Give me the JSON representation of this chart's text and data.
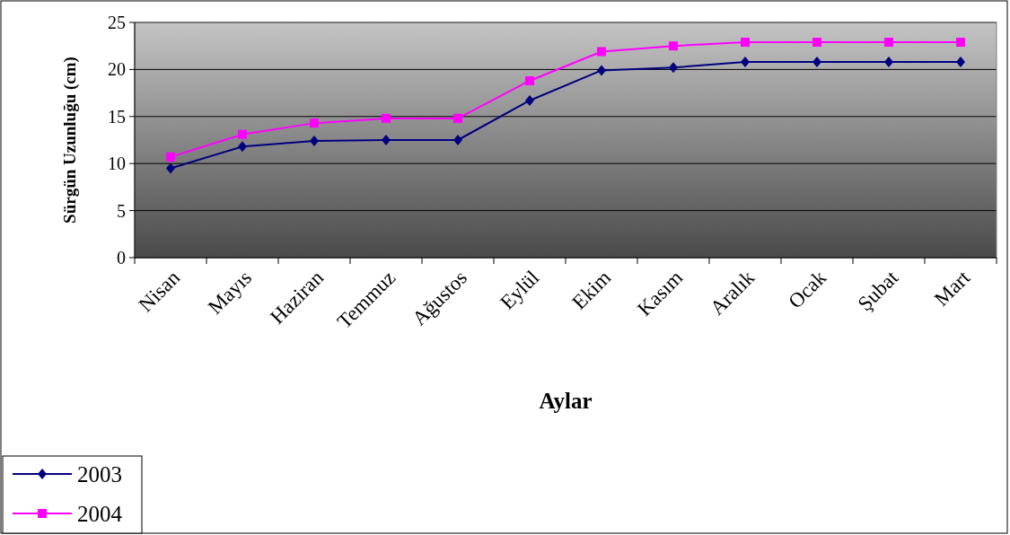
{
  "chart_data": {
    "type": "line",
    "xlabel": "Aylar",
    "ylabel": "Sürgün Uzunluğu (cm)",
    "categories": [
      "Nisan",
      "Mayıs",
      "Haziran",
      "Temmuz",
      "Ağustos",
      "Eylül",
      "Ekim",
      "Kasım",
      "Aralık",
      "Ocak",
      "Şubat",
      "Mart"
    ],
    "series": [
      {
        "name": "2003",
        "color": "#000080",
        "marker": "diamond",
        "values": [
          9.5,
          11.8,
          12.4,
          12.5,
          12.5,
          16.7,
          19.9,
          20.2,
          20.8,
          20.8,
          20.8,
          20.8
        ]
      },
      {
        "name": "2004",
        "color": "#ff00ff",
        "marker": "square",
        "values": [
          10.7,
          13.1,
          14.3,
          14.8,
          14.8,
          18.8,
          21.9,
          22.5,
          22.9,
          22.9,
          22.9,
          22.9
        ]
      }
    ],
    "ylim": [
      0,
      25
    ],
    "yticks": [
      0,
      5,
      10,
      15,
      20,
      25
    ],
    "grid": "y",
    "legend": "bottom left",
    "line_style": "solid"
  }
}
